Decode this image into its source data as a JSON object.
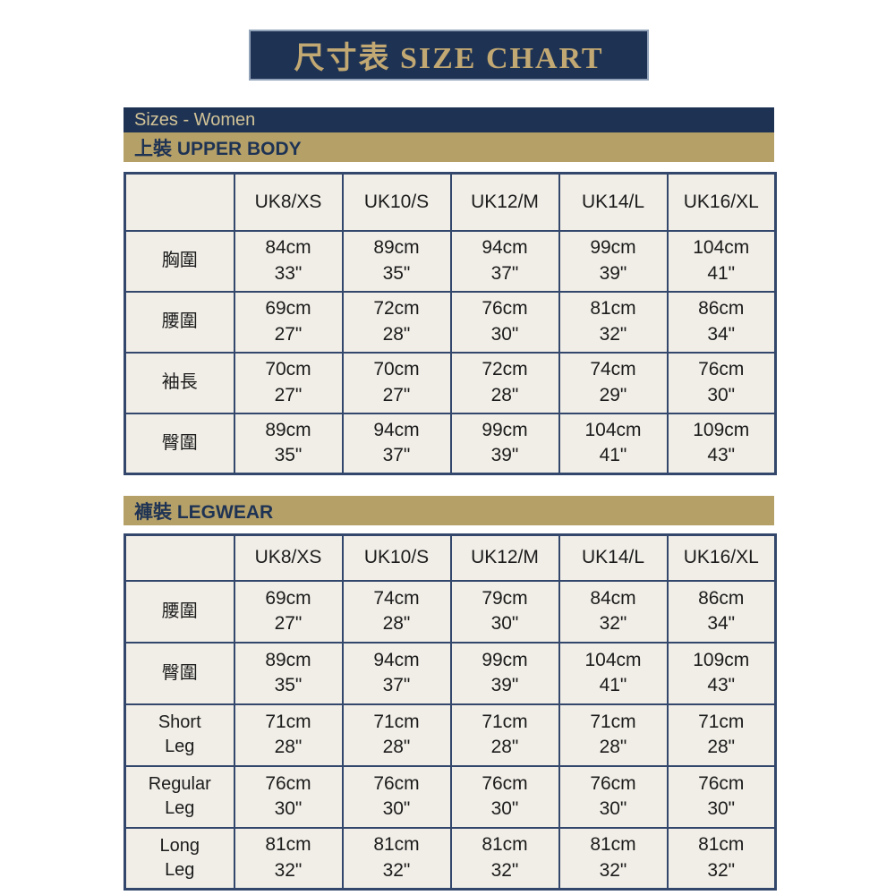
{
  "colors": {
    "navy": "#1e3354",
    "gold": "#b5a068",
    "banner_text_gold": "#c2a872",
    "navy_bar_text": "#d2c397",
    "cell_background": "#f1eee7",
    "table_border": "#32476b",
    "page_background": "#ffffff"
  },
  "title_banner": {
    "text": "尺寸表 SIZE CHART"
  },
  "group_header": {
    "text": "Sizes - Women"
  },
  "tables": [
    {
      "section_label": "上裝  UPPER BODY",
      "columns": [
        "",
        "UK8/XS",
        "UK10/S",
        "UK12/M",
        "UK14/L",
        "UK16/XL"
      ],
      "rows": [
        {
          "label": "胸圍",
          "cells": [
            "84cm\n33\"",
            "89cm\n35\"",
            "94cm\n37\"",
            "99cm\n39\"",
            "104cm\n41\""
          ]
        },
        {
          "label": "腰圍",
          "cells": [
            "69cm\n27\"",
            "72cm\n28\"",
            "76cm\n30\"",
            "81cm\n32\"",
            "86cm\n34\""
          ]
        },
        {
          "label": "袖長",
          "cells": [
            "70cm\n27\"",
            "70cm\n27\"",
            "72cm\n28\"",
            "74cm\n29\"",
            "76cm\n30\""
          ]
        },
        {
          "label": "臀圍",
          "cells": [
            "89cm\n35\"",
            "94cm\n37\"",
            "99cm\n39\"",
            "104cm\n41\"",
            "109cm\n43\""
          ]
        }
      ]
    },
    {
      "section_label": "褲裝  LEGWEAR",
      "columns": [
        "",
        "UK8/XS",
        "UK10/S",
        "UK12/M",
        "UK14/L",
        "UK16/XL"
      ],
      "rows": [
        {
          "label": "腰圍",
          "cells": [
            "69cm\n27\"",
            "74cm\n28\"",
            "79cm\n30\"",
            "84cm\n32\"",
            "86cm\n34\""
          ]
        },
        {
          "label": "臀圍",
          "cells": [
            "89cm\n35\"",
            "94cm\n37\"",
            "99cm\n39\"",
            "104cm\n41\"",
            "109cm\n43\""
          ]
        },
        {
          "label": "Short\nLeg",
          "cells": [
            "71cm\n28\"",
            "71cm\n28\"",
            "71cm\n28\"",
            "71cm\n28\"",
            "71cm\n28\""
          ]
        },
        {
          "label": "Regular\nLeg",
          "cells": [
            "76cm\n30\"",
            "76cm\n30\"",
            "76cm\n30\"",
            "76cm\n30\"",
            "76cm\n30\""
          ]
        },
        {
          "label": "Long\nLeg",
          "cells": [
            "81cm\n32\"",
            "81cm\n32\"",
            "81cm\n32\"",
            "81cm\n32\"",
            "81cm\n32\""
          ]
        }
      ]
    }
  ],
  "chart_data": [
    {
      "type": "table",
      "title": "尺寸表 SIZE CHART — Sizes - Women — 上裝 UPPER BODY",
      "columns": [
        "UK8/XS",
        "UK10/S",
        "UK12/M",
        "UK14/L",
        "UK16/XL"
      ],
      "rows": [
        {
          "measurement": "胸圍",
          "cm": [
            84,
            89,
            94,
            99,
            104
          ],
          "inches": [
            33,
            35,
            37,
            39,
            41
          ]
        },
        {
          "measurement": "腰圍",
          "cm": [
            69,
            72,
            76,
            81,
            86
          ],
          "inches": [
            27,
            28,
            30,
            32,
            34
          ]
        },
        {
          "measurement": "袖長",
          "cm": [
            70,
            70,
            72,
            74,
            76
          ],
          "inches": [
            27,
            27,
            28,
            29,
            30
          ]
        },
        {
          "measurement": "臀圍",
          "cm": [
            89,
            94,
            99,
            104,
            109
          ],
          "inches": [
            35,
            37,
            39,
            41,
            43
          ]
        }
      ]
    },
    {
      "type": "table",
      "title": "尺寸表 SIZE CHART — Sizes - Women — 褲裝 LEGWEAR",
      "columns": [
        "UK8/XS",
        "UK10/S",
        "UK12/M",
        "UK14/L",
        "UK16/XL"
      ],
      "rows": [
        {
          "measurement": "腰圍",
          "cm": [
            69,
            74,
            79,
            84,
            86
          ],
          "inches": [
            27,
            28,
            30,
            32,
            34
          ]
        },
        {
          "measurement": "臀圍",
          "cm": [
            89,
            94,
            99,
            104,
            109
          ],
          "inches": [
            35,
            37,
            39,
            41,
            43
          ]
        },
        {
          "measurement": "Short Leg",
          "cm": [
            71,
            71,
            71,
            71,
            71
          ],
          "inches": [
            28,
            28,
            28,
            28,
            28
          ]
        },
        {
          "measurement": "Regular Leg",
          "cm": [
            76,
            76,
            76,
            76,
            76
          ],
          "inches": [
            30,
            30,
            30,
            30,
            30
          ]
        },
        {
          "measurement": "Long Leg",
          "cm": [
            81,
            81,
            81,
            81,
            81
          ],
          "inches": [
            32,
            32,
            32,
            32,
            32
          ]
        }
      ]
    }
  ]
}
